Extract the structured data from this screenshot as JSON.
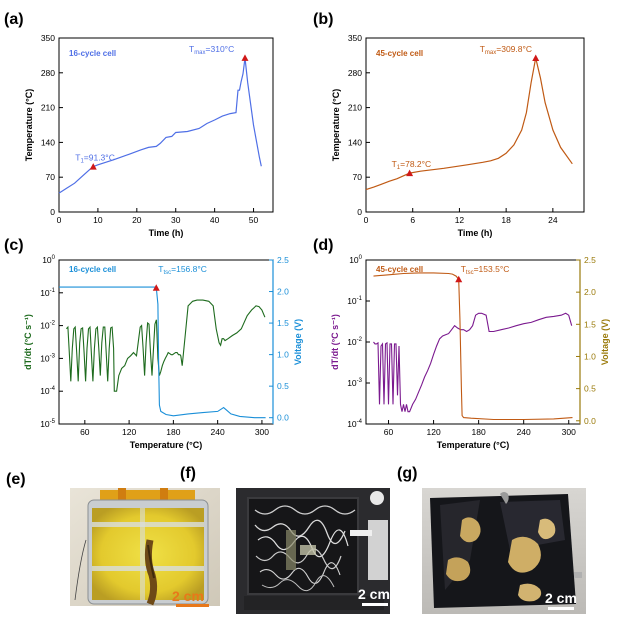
{
  "panel_labels": [
    "(a)",
    "(b)",
    "(c)",
    "(d)",
    "(e)",
    "(f)",
    "(g)"
  ],
  "colors": {
    "blue": "#4f6fe6",
    "blue_voltage": "#1a8fd8",
    "orange": "#c05a14",
    "green": "#1e6b1e",
    "purple": "#7b1a8f",
    "voltage_axis_d": "#9a7a0a",
    "marker": "#d01818"
  },
  "chart_data": [
    {
      "panel": "(a)",
      "type": "line",
      "title": "",
      "annotation": "16-cycle cell",
      "xlabel": "Time (h)",
      "ylabel": "Temperature (°C)",
      "xlim": [
        0,
        55
      ],
      "ylim": [
        0,
        350
      ],
      "xticks": [
        0,
        10,
        20,
        30,
        40,
        50
      ],
      "yticks": [
        0,
        70,
        140,
        210,
        280,
        350
      ],
      "series": [
        {
          "x": [
            0,
            2,
            4,
            6,
            8,
            8.8,
            10,
            14,
            18,
            21,
            23,
            25,
            26,
            27.5,
            29,
            30,
            33,
            36,
            38,
            40,
            42,
            44,
            45.5,
            46,
            46.4,
            46.8,
            47.3,
            47.8,
            48.5,
            50,
            51.5,
            52
          ],
          "y": [
            38,
            48,
            58,
            72,
            86,
            91.3,
            95,
            105,
            116,
            125,
            130,
            132,
            138,
            150,
            152,
            160,
            162,
            168,
            178,
            185,
            193,
            198,
            200,
            245,
            245,
            262,
            278,
            310,
            260,
            175,
            110,
            92
          ]
        }
      ],
      "markers": [
        {
          "x": 8.8,
          "y": 91.3,
          "label_main": "T",
          "label_sub": "1",
          "label_tail": "=91.3°C"
        },
        {
          "x": 47.8,
          "y": 310,
          "label_main": "T",
          "label_sub": "max",
          "label_tail": "=310°C"
        }
      ]
    },
    {
      "panel": "(b)",
      "type": "line",
      "title": "",
      "annotation": "45-cycle cell",
      "xlabel": "Time (h)",
      "ylabel": "Temperature (°C)",
      "xlim": [
        0,
        28
      ],
      "ylim": [
        0,
        350
      ],
      "xticks": [
        0,
        6,
        12,
        18,
        24
      ],
      "yticks": [
        0,
        70,
        140,
        210,
        280,
        350
      ],
      "series": [
        {
          "x": [
            0,
            1,
            2,
            3,
            4,
            5,
            5.6,
            7,
            10,
            13,
            15,
            16,
            17,
            18,
            19,
            20,
            20.6,
            21.2,
            21.8,
            22.4,
            23,
            24,
            25,
            26.5
          ],
          "y": [
            45,
            50,
            56,
            62,
            67,
            74,
            78.2,
            82,
            88,
            95,
            100,
            103,
            108,
            118,
            135,
            165,
            200,
            260,
            309.8,
            270,
            220,
            165,
            130,
            97
          ]
        }
      ],
      "markers": [
        {
          "x": 5.6,
          "y": 78.2,
          "label_main": "T",
          "label_sub": "1",
          "label_tail": "=78.2°C"
        },
        {
          "x": 21.8,
          "y": 309.8,
          "label_main": "T",
          "label_sub": "max",
          "label_tail": "=309.8°C"
        }
      ]
    },
    {
      "panel": "(c)",
      "type": "line",
      "title": "",
      "annotation": "16-cycle cell",
      "xlabel": "Temperature (°C)",
      "ylabel": "dT/dt (°C s⁻¹)",
      "y2label": "Voltage (V)",
      "xlim": [
        25,
        315
      ],
      "ylim_log": [
        -5,
        0
      ],
      "y2lim": [
        -0.1,
        2.5
      ],
      "xticks": [
        60,
        120,
        180,
        240,
        300
      ],
      "yticks_log": [
        -5,
        -4,
        -3,
        -2,
        -1,
        0
      ],
      "y2ticks": [
        0.0,
        0.5,
        1.0,
        1.5,
        2.0,
        2.5
      ],
      "series": [
        {
          "name": "dT/dt",
          "axis": "left",
          "x": [
            35,
            37,
            39,
            41,
            43,
            45,
            47,
            49,
            51,
            53,
            55,
            57,
            59,
            61,
            63,
            65,
            67,
            69,
            71,
            73,
            75,
            77,
            79,
            81,
            83,
            85,
            87,
            89,
            91,
            93,
            95,
            97,
            99,
            100,
            103,
            106,
            110,
            114,
            118,
            122,
            126,
            130,
            133,
            135,
            137,
            139,
            141,
            143,
            145,
            147,
            149,
            151,
            153,
            155,
            157,
            159,
            161,
            163,
            165,
            167,
            169,
            171,
            173,
            175,
            177,
            179,
            181,
            183,
            185,
            187,
            189,
            190,
            192,
            196,
            200,
            206,
            212,
            220,
            228,
            234,
            238,
            242,
            244,
            246,
            248,
            250,
            254,
            260,
            266,
            272,
            280,
            286,
            292,
            296,
            300,
            304
          ],
          "y": [
            0.008,
            0.009,
            0.0015,
            0.0002,
            0.002,
            0.008,
            0.009,
            0.0015,
            0.0002,
            0.003,
            0.008,
            0.0085,
            0.0015,
            0.0002,
            0.002,
            0.008,
            0.009,
            0.0012,
            0.0002,
            0.002,
            0.008,
            0.009,
            0.002,
            0.0003,
            0.003,
            0.009,
            0.009,
            0.0015,
            0.0002,
            0.002,
            0.0085,
            0.009,
            0.002,
            0.0001,
            0.0001,
            0.0003,
            0.0005,
            0.0006,
            0.001,
            0.0012,
            0.0015,
            0.0012,
            0.004,
            0.009,
            0.01,
            0.002,
            0.0003,
            0.003,
            0.012,
            0.011,
            0.0015,
            0.0003,
            0.002,
            0.011,
            0.015,
            0.001,
            0.0003,
            0.0004,
            0.0006,
            0.0008,
            0.001,
            0.0012,
            0.0015,
            0.0014,
            0.0013,
            0.0013,
            0.0014,
            0.0015,
            0.0015,
            0.0013,
            0.0013,
            0.0012,
            0.0006,
            0.005,
            0.04,
            0.055,
            0.06,
            0.06,
            0.055,
            0.04,
            0.008,
            0.003,
            0.0025,
            0.004,
            0.004,
            0.0035,
            0.004,
            0.005,
            0.006,
            0.008,
            0.02,
            0.03,
            0.04,
            0.038,
            0.03,
            0.018
          ]
        },
        {
          "name": "Voltage",
          "axis": "right",
          "x": [
            25,
            60,
            100,
            140,
            155,
            156.8,
            159,
            160,
            161,
            163,
            170,
            180,
            200,
            220,
            240,
            248,
            252,
            258,
            270,
            290,
            305
          ],
          "y": [
            2.07,
            2.07,
            2.07,
            2.07,
            2.07,
            2.06,
            1.8,
            0.9,
            0.2,
            0.1,
            0.05,
            0.03,
            0.06,
            0.08,
            0.1,
            0.16,
            0.12,
            0.06,
            0.02,
            0.0,
            0.0
          ]
        }
      ],
      "markers": [
        {
          "x": 156.8,
          "y2": 2.06,
          "label_main": "T",
          "label_sub": "tsc",
          "label_tail": "=156.8°C"
        }
      ]
    },
    {
      "panel": "(d)",
      "type": "line",
      "title": "",
      "annotation": "45-cycle cell",
      "xlabel": "Temperature (°C)",
      "ylabel": "dT/dt (°C s⁻¹)",
      "y2label": "Voltage (V)",
      "xlim": [
        30,
        315
      ],
      "ylim_log": [
        -4,
        0
      ],
      "y2lim": [
        -0.05,
        2.5
      ],
      "xticks": [
        60,
        120,
        180,
        240,
        300
      ],
      "yticks_log": [
        -4,
        -3,
        -2,
        -1,
        0
      ],
      "y2ticks": [
        0.0,
        0.5,
        1.0,
        1.5,
        2.0,
        2.5
      ],
      "series": [
        {
          "name": "dT/dt",
          "axis": "left",
          "x": [
            40,
            42,
            44,
            46,
            48,
            50,
            52,
            54,
            56,
            58,
            60,
            62,
            64,
            66,
            68,
            70,
            72,
            74,
            76,
            78,
            80,
            82,
            84,
            86,
            88,
            92,
            96,
            100,
            104,
            108,
            112,
            116,
            120,
            124,
            128,
            132,
            136,
            140,
            144,
            148,
            152,
            156,
            160,
            164,
            168,
            172,
            176,
            180,
            184,
            190,
            194,
            200,
            210,
            220,
            230,
            240,
            250,
            260,
            270,
            280,
            290,
            296,
            300,
            304
          ],
          "y": [
            0.01,
            0.009,
            0.009,
            0.0095,
            0.0003,
            0.008,
            0.009,
            0.0003,
            0.009,
            0.0095,
            0.0003,
            0.009,
            0.009,
            0.0003,
            0.009,
            0.009,
            0.0005,
            0.008,
            0.0003,
            0.0002,
            0.0003,
            0.0002,
            0.0003,
            0.0002,
            0.0002,
            0.0003,
            0.0004,
            0.0006,
            0.0009,
            0.0014,
            0.002,
            0.003,
            0.005,
            0.008,
            0.012,
            0.014,
            0.015,
            0.016,
            0.02,
            0.025,
            0.022,
            0.02,
            0.02,
            0.018,
            0.02,
            0.025,
            0.045,
            0.05,
            0.05,
            0.045,
            0.018,
            0.018,
            0.02,
            0.022,
            0.025,
            0.028,
            0.03,
            0.035,
            0.04,
            0.042,
            0.045,
            0.05,
            0.045,
            0.025
          ]
        },
        {
          "name": "Voltage",
          "axis": "right",
          "x": [
            40,
            60,
            80,
            100,
            120,
            140,
            145,
            150,
            152,
            153.5,
            155,
            157,
            158,
            160,
            170,
            200,
            240,
            280,
            305
          ],
          "y": [
            2.25,
            2.27,
            2.29,
            2.3,
            2.3,
            2.29,
            2.28,
            2.25,
            2.22,
            2.2,
            1.6,
            0.5,
            0.08,
            0.05,
            0.04,
            0.02,
            0.02,
            0.03,
            0.05
          ]
        }
      ],
      "markers": [
        {
          "x": 153.5,
          "y2": 2.2,
          "label_main": "T",
          "label_sub": "tsc",
          "label_tail": "=153.5°C"
        }
      ]
    }
  ],
  "photos": [
    {
      "panel": "(e)",
      "scale_label": "2 cm"
    },
    {
      "panel": "(f)",
      "scale_label": "2 cm"
    },
    {
      "panel": "(g)",
      "scale_label": "2 cm"
    }
  ]
}
